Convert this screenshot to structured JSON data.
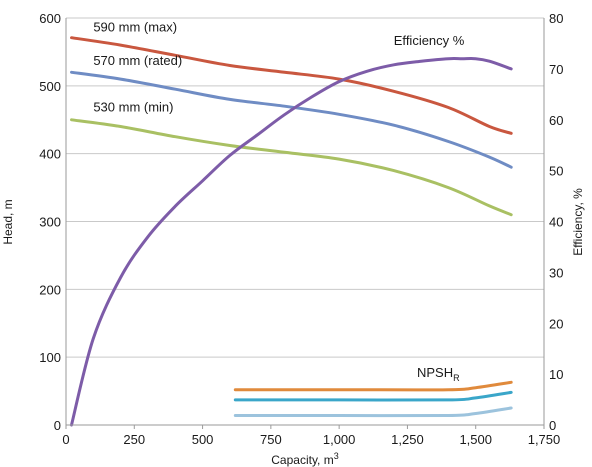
{
  "chart_data": {
    "type": "line",
    "xlabel": "Capacity, m",
    "xlabel_sup": "3",
    "ylabel_left": "Head, m",
    "ylabel_right": "Efficiency, %",
    "xlim": [
      0,
      1750
    ],
    "ylim_left": [
      0,
      600
    ],
    "ylim_right": [
      0,
      80
    ],
    "x_ticks": [
      0,
      250,
      500,
      750,
      1000,
      1250,
      1500,
      1750
    ],
    "x_tick_labels": [
      "0",
      "250",
      "500",
      "750",
      "1,000",
      "1,250",
      "1,500",
      "1,750"
    ],
    "y_left_ticks": [
      0,
      100,
      200,
      300,
      400,
      500,
      600
    ],
    "y_left_tick_labels": [
      "0",
      "100",
      "200",
      "300",
      "400",
      "500",
      "600"
    ],
    "y_right_ticks": [
      0,
      10,
      20,
      30,
      40,
      50,
      60,
      70,
      80
    ],
    "y_right_tick_labels": [
      "0",
      "10",
      "20",
      "30",
      "40",
      "50",
      "60",
      "70",
      "80"
    ],
    "grid": "horizontal",
    "series": [
      {
        "name": "590 mm (max)",
        "axis": "left",
        "color": "#c9573f",
        "x": [
          20,
          200,
          400,
          600,
          800,
          1000,
          1200,
          1400,
          1550,
          1630
        ],
        "y": [
          571,
          560,
          545,
          530,
          520,
          510,
          492,
          468,
          440,
          430
        ]
      },
      {
        "name": "570 mm (rated)",
        "axis": "left",
        "color": "#6f8cc4",
        "x": [
          20,
          200,
          400,
          600,
          800,
          1000,
          1200,
          1400,
          1550,
          1630
        ],
        "y": [
          520,
          510,
          495,
          480,
          470,
          458,
          442,
          418,
          395,
          380
        ]
      },
      {
        "name": "530 mm (min)",
        "axis": "left",
        "color": "#a9c063",
        "x": [
          20,
          200,
          400,
          600,
          800,
          1000,
          1200,
          1400,
          1550,
          1630
        ],
        "y": [
          450,
          440,
          425,
          412,
          402,
          392,
          375,
          350,
          323,
          310
        ]
      },
      {
        "name": "Efficiency %",
        "axis": "right",
        "color": "#7d5ca8",
        "x": [
          20,
          100,
          200,
          300,
          400,
          500,
          600,
          700,
          800,
          900,
          1000,
          1100,
          1200,
          1300,
          1400,
          1450,
          1500,
          1550,
          1630
        ],
        "y": [
          0,
          17,
          29,
          37,
          43,
          48,
          53,
          57,
          61,
          64.5,
          67.5,
          69.5,
          70.8,
          71.5,
          72,
          72,
          72,
          71.5,
          70
        ]
      }
    ],
    "npsh": {
      "label": "NPSH",
      "label_sub": "R",
      "lines": [
        {
          "color": "#e08a3c",
          "x": [
            620,
            1000,
            1400,
            1500,
            1630
          ],
          "y": [
            52,
            52,
            52,
            55,
            63
          ]
        },
        {
          "color": "#3aa6c9",
          "x": [
            620,
            1000,
            1400,
            1500,
            1630
          ],
          "y": [
            37,
            37,
            37,
            40,
            48
          ]
        },
        {
          "color": "#9cc3dd",
          "x": [
            620,
            1000,
            1400,
            1500,
            1630
          ],
          "y": [
            14,
            14,
            14,
            17,
            25
          ]
        }
      ]
    },
    "annotations": [
      {
        "text": "590 mm (max)",
        "x": 100,
        "y": 580
      },
      {
        "text": "570 mm (rated)",
        "x": 100,
        "y": 531
      },
      {
        "text": "530 mm (min)",
        "x": 100,
        "y": 462
      },
      {
        "text": "Efficiency %",
        "x": 1200,
        "y": 560
      }
    ]
  }
}
